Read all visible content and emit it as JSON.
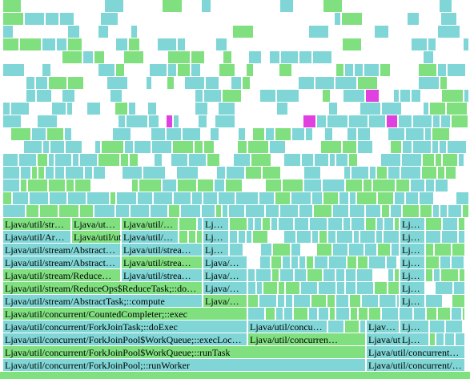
{
  "frames": [
    {
      "label": "Ljava/util/concurrent/ForkJoinPool;::runWorker"
    },
    {
      "label": "Ljava/util/concurrent/…"
    },
    {
      "label": "Ljava/util/concurrent/ForkJoinPool$WorkQueue;::runTask"
    },
    {
      "label": "Ljava/util/concurrent…"
    },
    {
      "label": "Ljava/util/concurrent/ForkJoinPool$WorkQueue;::execLoc…"
    },
    {
      "label": "Ljava/util/concurren…"
    },
    {
      "label": "Ljava/util/c…"
    },
    {
      "label": "Lj…"
    },
    {
      "label": "Ljava/util/concurrent/ForkJoinTask;::doExec"
    },
    {
      "label": "Ljava/util/concu…"
    },
    {
      "label": "Ljav…"
    },
    {
      "label": "Lj…"
    },
    {
      "label": "Ljava/util/concurrent/CountedCompleter;::exec"
    },
    {
      "label": "Ljava/util/stream/AbstractTask;::compute"
    },
    {
      "label": "Ljava/…"
    },
    {
      "label": "Lj…"
    },
    {
      "label": "Ljava/util/stream/ReduceOps$ReduceTask;::do…"
    },
    {
      "label": "Ljava/…"
    },
    {
      "label": "Lj…"
    },
    {
      "label": "Ljava/util/stream/Reduce…"
    },
    {
      "label": "Ljava/util/strea…"
    },
    {
      "label": "Ljava/…"
    },
    {
      "label": "Lj…"
    },
    {
      "label": "Ljava/util/stream/Abstract…"
    },
    {
      "label": "Ljava/util/strea…"
    },
    {
      "label": "Ljava/…"
    },
    {
      "label": "Lj…"
    },
    {
      "label": "Ljava/util/stream/Abstract…"
    },
    {
      "label": "Ljava/util/strea…"
    },
    {
      "label": "Lj…"
    },
    {
      "label": "Lj…"
    },
    {
      "label": "Ljava/util/Ar…"
    },
    {
      "label": "Ljava/util/ut…"
    },
    {
      "label": "Ljava/util/…"
    },
    {
      "label": "Lj…"
    },
    {
      "label": "Lj…"
    },
    {
      "label": "Ljava/util/str…"
    },
    {
      "label": "Ljava/ut…"
    },
    {
      "label": "Ljava/util/…"
    },
    {
      "label": "Lj…"
    },
    {
      "label": "Lj…"
    }
  ]
}
